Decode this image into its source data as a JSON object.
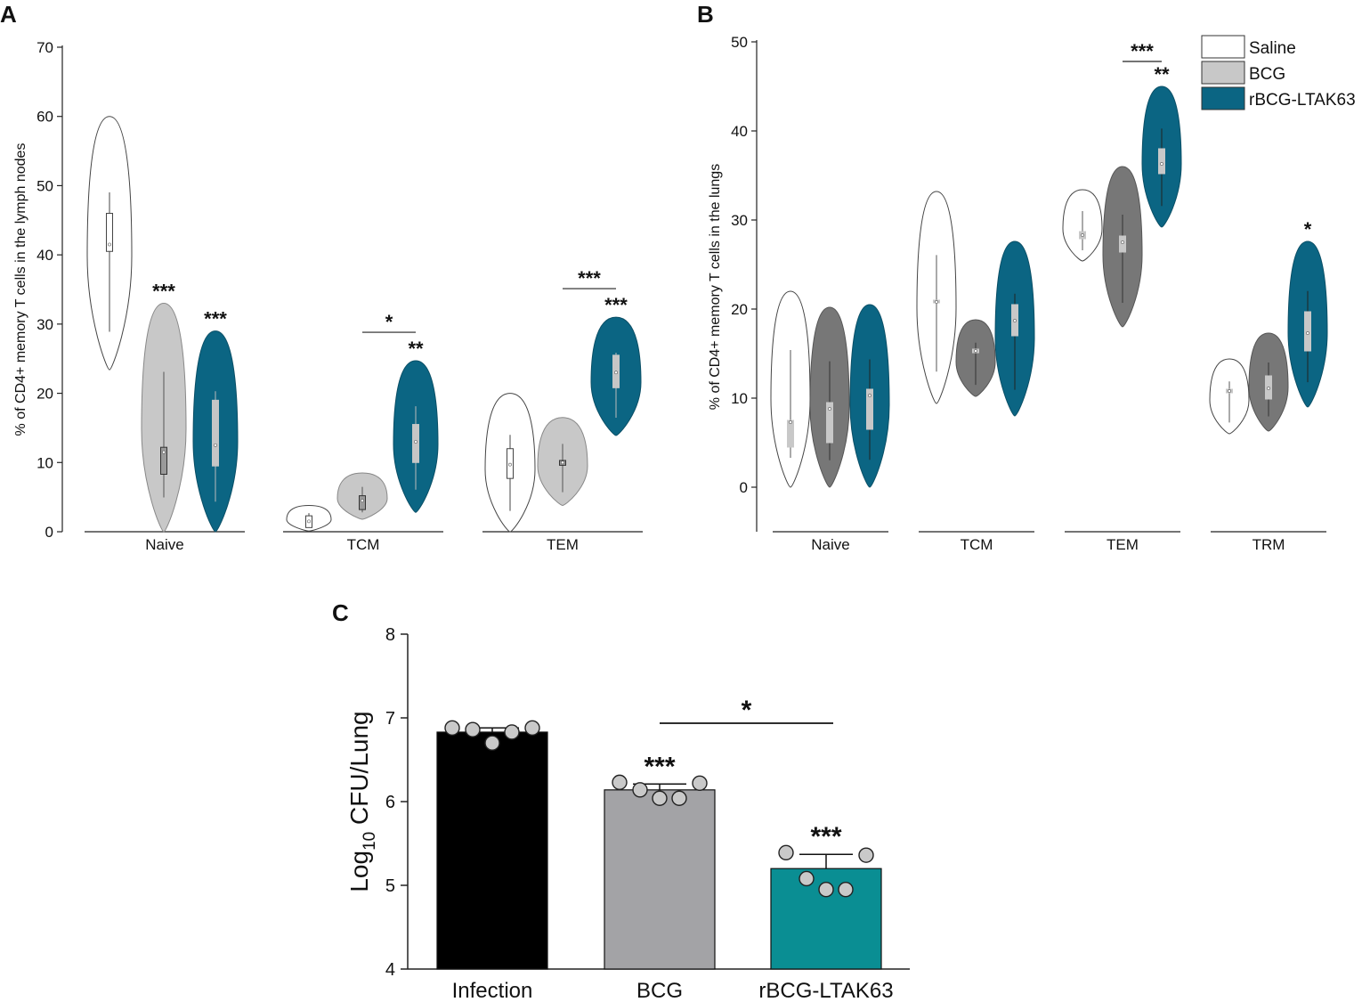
{
  "panels": {
    "a": "A",
    "b": "B",
    "c": "C"
  },
  "legend": [
    {
      "name": "Saline",
      "color": "#ffffff"
    },
    {
      "name": "BCG",
      "color": "#c8c8c8"
    },
    {
      "name": "rBCG-LTAK63",
      "color": "#0b6583"
    }
  ],
  "chart_data": [
    {
      "type": "violin",
      "panel": "A",
      "title": "",
      "ylabel": "% of CD4+ memory T cells in the lymph nodes",
      "ylim": [
        0,
        70
      ],
      "yticks": [
        0,
        10,
        20,
        30,
        40,
        50,
        60,
        70
      ],
      "categories": [
        "Naive",
        "TCM",
        "TEM"
      ],
      "series": [
        {
          "name": "Saline",
          "min": [
            23.4,
            0.1,
            0
          ],
          "max": [
            60,
            3.8,
            20
          ],
          "median": [
            41.5,
            1.5,
            9.7
          ],
          "q1": [
            40.5,
            0.6,
            7.7
          ],
          "q3": [
            46,
            2.3,
            12
          ]
        },
        {
          "name": "BCG",
          "min": [
            0,
            1.8,
            3.8
          ],
          "max": [
            33,
            8.5,
            16.5
          ],
          "median": [
            11.5,
            4.5,
            10
          ],
          "q1": [
            8.3,
            3.2,
            9.6
          ],
          "q3": [
            12.2,
            5.2,
            10.3
          ]
        },
        {
          "name": "rBCG-LTAK63",
          "min": [
            0,
            2.8,
            13.9
          ],
          "max": [
            29,
            24.7,
            31
          ],
          "median": [
            12.5,
            13,
            23
          ],
          "q1": [
            9.5,
            10,
            20.8
          ],
          "q3": [
            19,
            15.5,
            25.5
          ]
        }
      ],
      "annotations": [
        {
          "category": "Naive",
          "series": "BCG",
          "text": "***"
        },
        {
          "category": "Naive",
          "series": "rBCG-LTAK63",
          "text": "***"
        },
        {
          "category": "TCM",
          "series": "rBCG-LTAK63",
          "text": "**"
        },
        {
          "category": "TCM",
          "between": [
            "BCG",
            "rBCG-LTAK63"
          ],
          "text": "*"
        },
        {
          "category": "TEM",
          "series": "rBCG-LTAK63",
          "text": "***"
        },
        {
          "category": "TEM",
          "between": [
            "BCG",
            "rBCG-LTAK63"
          ],
          "text": "***"
        }
      ]
    },
    {
      "type": "violin",
      "panel": "B",
      "title": "",
      "ylabel": "% of CD4+ memory T cells in the lungs",
      "ylim": [
        -5,
        50
      ],
      "yticks": [
        0,
        10,
        20,
        30,
        40,
        50
      ],
      "categories": [
        "Naive",
        "TCM",
        "TEM",
        "TRM"
      ],
      "series": [
        {
          "name": "Saline",
          "min": [
            0,
            9.4,
            25.4,
            6
          ],
          "max": [
            22,
            33.2,
            33.4,
            14.4
          ],
          "median": [
            7.3,
            20.8,
            28.3,
            10.8
          ],
          "q1": [
            4.5,
            20.7,
            27.9,
            10.6
          ],
          "q3": [
            7.5,
            21,
            28.7,
            11
          ]
        },
        {
          "name": "BCG",
          "min": [
            0,
            10.2,
            18,
            6.3
          ],
          "max": [
            20.2,
            18.8,
            36,
            17.3
          ],
          "median": [
            8.8,
            15.3,
            27.5,
            11.1
          ],
          "q1": [
            5,
            15.1,
            26.4,
            9.9
          ],
          "q3": [
            9.5,
            15.5,
            28.2,
            12.5
          ]
        },
        {
          "name": "rBCG-LTAK63",
          "min": [
            0,
            8,
            29.2,
            9
          ],
          "max": [
            20.5,
            27.6,
            45,
            27.6
          ],
          "median": [
            10.3,
            18.7,
            36.3,
            17.3
          ],
          "q1": [
            6.5,
            17,
            35.2,
            15.3
          ],
          "q3": [
            11,
            20.5,
            38,
            19.7
          ]
        }
      ],
      "annotations": [
        {
          "category": "TEM",
          "series": "rBCG-LTAK63",
          "text": "**"
        },
        {
          "category": "TEM",
          "between": [
            "BCG",
            "rBCG-LTAK63"
          ],
          "text": "***"
        },
        {
          "category": "TRM",
          "series": "rBCG-LTAK63",
          "text": "*"
        }
      ]
    },
    {
      "type": "bar",
      "panel": "C",
      "title": "",
      "ylabel_base": "Log",
      "ylabel_sub": "10",
      "ylabel_rest": " CFU/Lung",
      "ylim": [
        4,
        8
      ],
      "yticks": [
        4,
        5,
        6,
        7,
        8
      ],
      "categories": [
        "Infection",
        "BCG",
        "rBCG-LTAK63"
      ],
      "values": [
        6.83,
        6.14,
        5.2
      ],
      "errors": [
        0.05,
        0.07,
        0.17
      ],
      "colors": [
        "#000000",
        "#a3a3a6",
        "#0a8e93"
      ],
      "points": [
        [
          6.88,
          6.86,
          6.7,
          6.83,
          6.88
        ],
        [
          6.23,
          6.14,
          6.04,
          6.04,
          6.22
        ],
        [
          5.39,
          5.08,
          4.95,
          4.95,
          5.36
        ]
      ],
      "annotations": [
        {
          "category": "BCG",
          "text": "***"
        },
        {
          "category": "rBCG-LTAK63",
          "text": "***"
        },
        {
          "between": [
            "BCG",
            "rBCG-LTAK63"
          ],
          "text": "*"
        }
      ]
    }
  ]
}
